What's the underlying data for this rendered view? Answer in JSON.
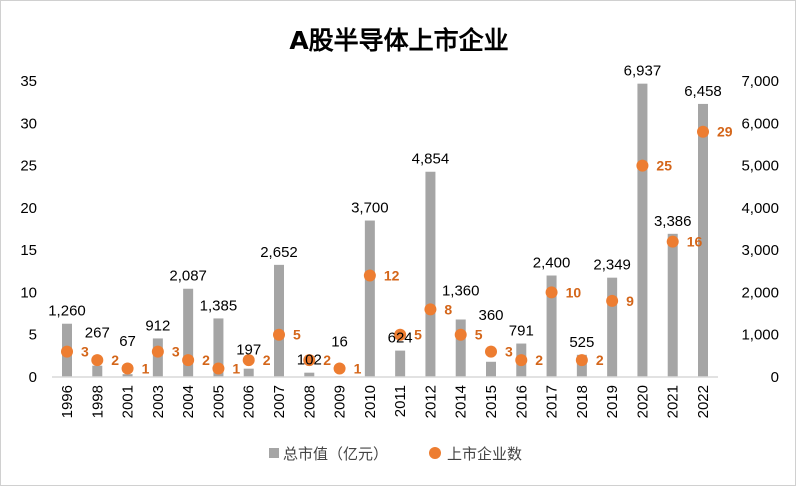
{
  "chart_data": {
    "type": "bar+scatter",
    "title": "A股半导体上市企业",
    "categories": [
      "1996",
      "1998",
      "2001",
      "2003",
      "2004",
      "2005",
      "2006",
      "2007",
      "2008",
      "2009",
      "2010",
      "2011",
      "2012",
      "2014",
      "2015",
      "2016",
      "2017",
      "2018",
      "2019",
      "2020",
      "2021",
      "2022"
    ],
    "series": [
      {
        "name": "总市值（亿元）",
        "type": "bar",
        "axis": "right",
        "color": "#a5a5a5",
        "values": [
          1260,
          267,
          67,
          912,
          2087,
          1385,
          197,
          2652,
          102,
          16,
          3700,
          624,
          4854,
          1360,
          360,
          791,
          2400,
          525,
          2349,
          6937,
          3386,
          6458
        ],
        "labels": [
          "1,260",
          "267",
          "67",
          "912",
          "2,087",
          "1,385",
          "197",
          "2,652",
          "102",
          "16",
          "3,700",
          "624",
          "4,854",
          "1,360",
          "360",
          "791",
          "2,400",
          "525",
          "2,349",
          "6,937",
          "3,386",
          "6,458"
        ]
      },
      {
        "name": "上市企业数",
        "type": "scatter",
        "axis": "left",
        "color": "#ed7d31",
        "values": [
          3,
          2,
          1,
          3,
          2,
          1,
          2,
          5,
          2,
          1,
          12,
          5,
          8,
          5,
          3,
          2,
          10,
          2,
          9,
          25,
          16,
          29
        ]
      }
    ],
    "left_axis": {
      "range": [
        0,
        35
      ],
      "ticks": [
        "0",
        "5",
        "10",
        "15",
        "20",
        "25",
        "30",
        "35"
      ]
    },
    "right_axis": {
      "range": [
        0,
        7000
      ],
      "ticks": [
        "0",
        "1,000",
        "2,000",
        "3,000",
        "4,000",
        "5,000",
        "6,000",
        "7,000"
      ]
    },
    "legend": "bottom",
    "grid": false
  }
}
